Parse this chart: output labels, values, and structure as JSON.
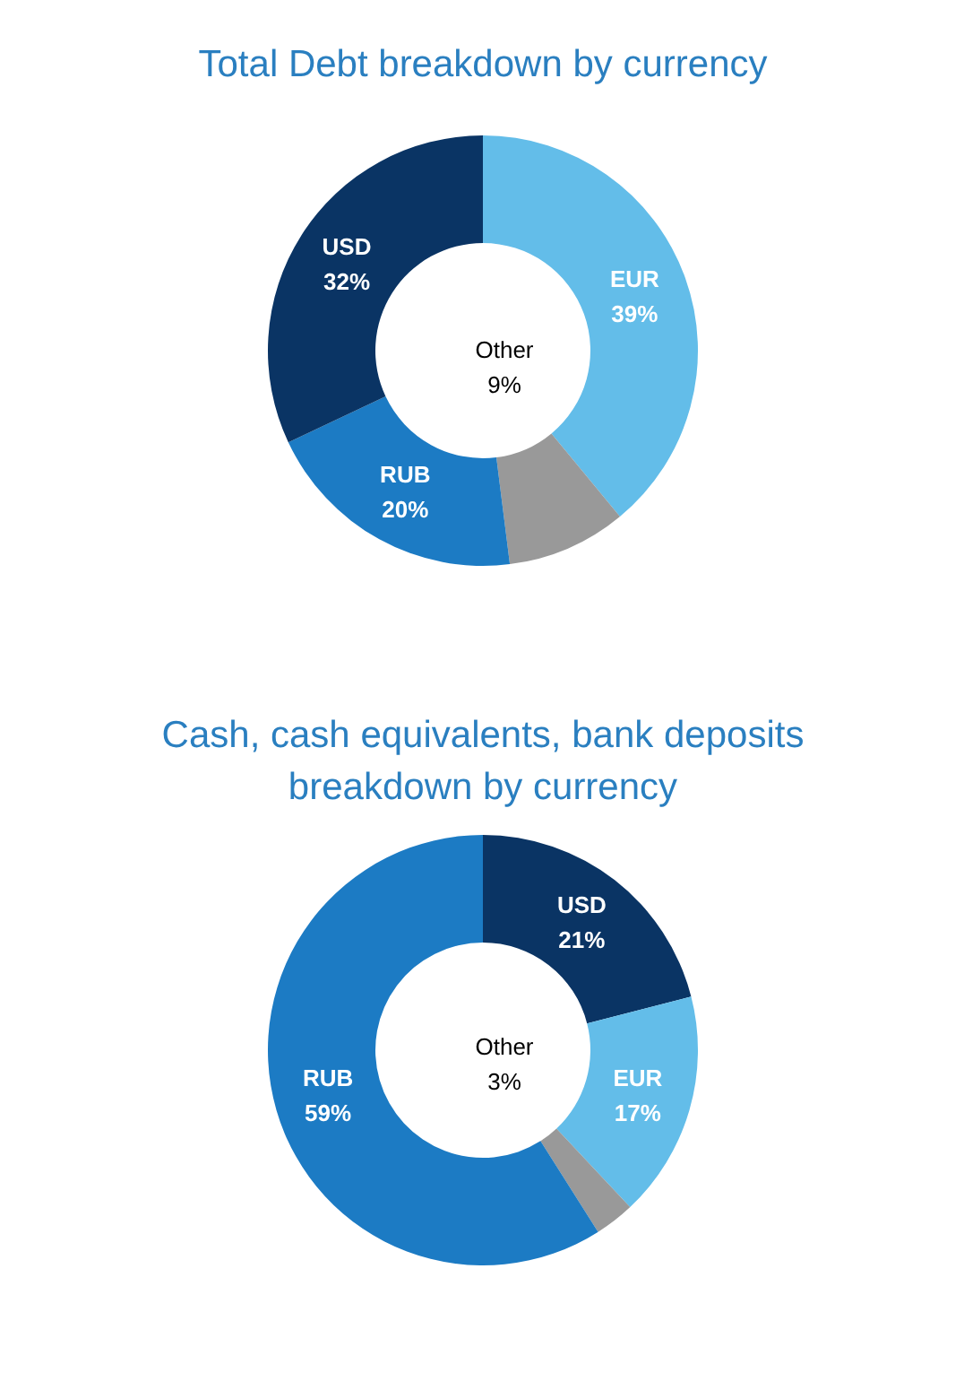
{
  "chart_data": [
    {
      "type": "donut",
      "title": "Total Debt breakdown by currency",
      "categories": [
        "EUR",
        "Other",
        "RUB",
        "USD"
      ],
      "values": [
        39,
        9,
        20,
        32
      ],
      "value_labels": [
        "39%",
        "9%",
        "20%",
        "32%"
      ],
      "colors": [
        "#63bde9",
        "#999999",
        "#1c7bc4",
        "#0a3464"
      ]
    },
    {
      "type": "donut",
      "title": "Cash, cash equivalents, bank deposits\nbreakdown by currency",
      "categories": [
        "USD",
        "EUR",
        "Other",
        "RUB"
      ],
      "values": [
        21,
        17,
        3,
        59
      ],
      "value_labels": [
        "21%",
        "17%",
        "3%",
        "59%"
      ],
      "colors": [
        "#0a3464",
        "#63bde9",
        "#999999",
        "#1c7bc4"
      ]
    }
  ]
}
